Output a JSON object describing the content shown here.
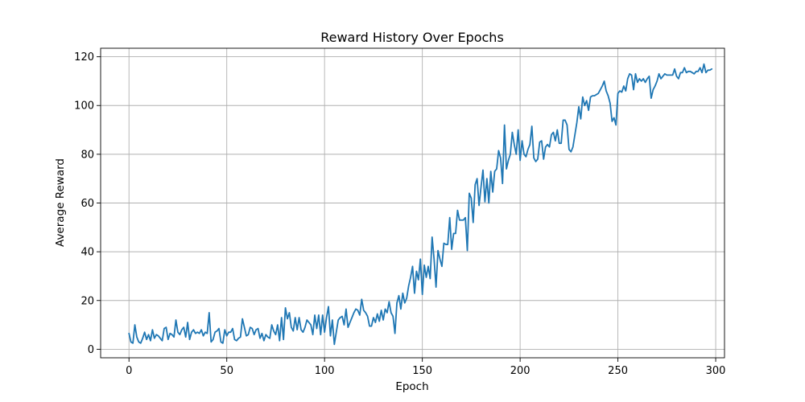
{
  "chart_data": {
    "type": "line",
    "title": "Reward History Over Epochs",
    "xlabel": "Epoch",
    "ylabel": "Average Reward",
    "xlim": [
      -14.5,
      304.5
    ],
    "ylim": [
      -3.5,
      123.5
    ],
    "xticks": [
      0,
      50,
      100,
      150,
      200,
      250,
      300
    ],
    "yticks": [
      0,
      20,
      40,
      60,
      80,
      100,
      120
    ],
    "grid": true,
    "line_color": "#1f77b4",
    "series": [
      {
        "values": [
          6.5,
          3,
          2.5,
          10,
          5,
          3,
          2.5,
          4.5,
          7,
          4,
          6,
          3.5,
          8,
          4.5,
          6,
          5.5,
          4.5,
          3.5,
          8.5,
          9,
          4,
          6.5,
          6,
          5,
          12,
          7,
          6,
          8,
          9,
          5,
          11,
          4,
          7,
          8,
          6.5,
          7,
          6.5,
          8,
          5.5,
          7,
          6.5,
          15,
          3,
          4,
          7,
          7.5,
          8.5,
          3,
          2.5,
          8,
          5.5,
          7,
          7,
          8.5,
          4,
          3.5,
          4.5,
          5,
          12.5,
          9,
          5.5,
          6,
          9,
          8.5,
          6,
          8,
          8.5,
          4.5,
          6.5,
          3.5,
          6,
          5,
          4.5,
          10,
          7.5,
          6,
          10,
          3.5,
          13,
          4,
          17,
          12.5,
          15,
          9,
          7.5,
          13,
          8,
          13,
          8,
          7,
          9,
          12,
          11,
          10,
          6,
          14,
          8.5,
          14,
          6,
          14,
          7,
          13,
          17.5,
          5.5,
          12,
          2,
          7,
          12,
          13,
          13.5,
          10,
          16.5,
          9,
          11,
          13,
          15,
          16.5,
          16,
          14,
          20.5,
          16,
          15,
          13.5,
          9.5,
          9.5,
          13,
          11,
          14.5,
          11.5,
          16,
          12,
          16.5,
          15,
          19.5,
          15,
          13.5,
          6.5,
          19,
          22,
          16.5,
          23,
          19,
          21,
          26,
          29.5,
          34,
          23,
          32,
          28.5,
          37,
          22.5,
          34.5,
          29.5,
          34,
          29,
          46,
          37,
          25.5,
          40.5,
          37,
          34,
          43.5,
          43,
          43,
          54,
          41,
          47.5,
          47.5,
          57,
          53,
          53,
          53,
          54,
          40.5,
          64,
          62,
          52,
          67.5,
          70,
          59,
          66.5,
          73.5,
          60.5,
          70,
          60,
          73,
          64.5,
          73,
          74,
          81.5,
          78.5,
          68,
          92,
          74,
          77.5,
          80,
          89,
          84,
          80,
          90,
          77.5,
          85.5,
          80,
          79,
          82,
          84,
          91.5,
          78.5,
          77,
          78,
          85,
          85.5,
          78,
          83,
          84,
          83,
          88,
          89,
          85.5,
          90,
          84.5,
          84.5,
          94,
          94,
          92,
          82,
          81,
          83,
          88,
          93,
          99.5,
          94.5,
          103.5,
          100,
          102,
          98,
          103.5,
          104,
          104,
          104.5,
          105,
          106.5,
          108,
          110,
          106,
          104,
          101,
          93.5,
          95,
          92,
          105,
          106,
          105.5,
          108,
          106,
          111,
          113,
          112.5,
          106.5,
          113,
          109.5,
          111,
          110,
          111,
          109.5,
          111,
          112,
          103,
          106.5,
          108,
          110,
          113,
          111,
          112,
          113,
          112.5,
          112.5,
          112.5,
          112.5,
          115,
          112,
          111,
          113.5,
          113.5,
          115.5,
          113.5,
          114,
          114,
          113.5,
          113,
          114,
          114,
          115.5,
          113.5,
          117,
          113.5,
          114.5,
          114.5,
          115
        ]
      }
    ]
  }
}
